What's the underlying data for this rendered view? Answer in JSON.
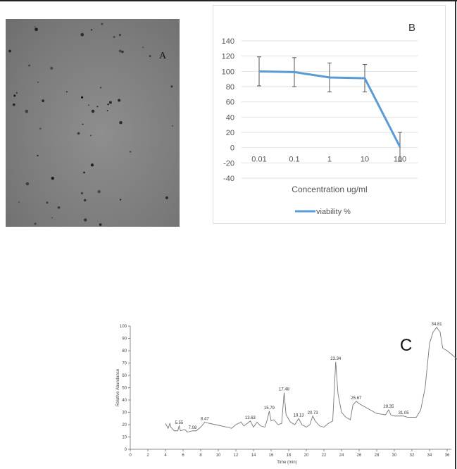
{
  "panel_a": {
    "label": "A"
  },
  "chart_data": [
    {
      "type": "line",
      "panel_label": "B",
      "title": "",
      "xlabel": "Concentration ug/ml",
      "ylabel": "",
      "categories": [
        "0.01",
        "0.1",
        "1",
        "10",
        "100"
      ],
      "series": [
        {
          "name": "viability %",
          "values": [
            100,
            99,
            92,
            91,
            1
          ],
          "error": [
            19,
            19,
            19,
            18,
            19
          ]
        }
      ],
      "ylim": [
        -40,
        140
      ],
      "yticks": [
        140,
        120,
        100,
        80,
        60,
        40,
        20,
        0,
        -20,
        -40
      ],
      "grid": true,
      "legend": "bottom",
      "color": "#5b9bd5"
    },
    {
      "type": "line",
      "panel_label": "C",
      "xlabel": "Time (min)",
      "ylabel": "Relative Abundance",
      "xlim": [
        0,
        37.5
      ],
      "ylim": [
        0,
        100
      ],
      "xticks": [
        0,
        2,
        4,
        6,
        8,
        10,
        12,
        14,
        16,
        18,
        20,
        22,
        24,
        26,
        28,
        30,
        32,
        34,
        36
      ],
      "yticks": [
        0,
        10,
        20,
        30,
        40,
        50,
        60,
        70,
        80,
        90,
        100
      ],
      "peaks": [
        {
          "t": "5.55",
          "y": 19
        },
        {
          "t": "7.08",
          "y": 15
        },
        {
          "t": "8.47",
          "y": 22
        },
        {
          "t": "13.63",
          "y": 23
        },
        {
          "t": "15.79",
          "y": 31
        },
        {
          "t": "17.48",
          "y": 46
        },
        {
          "t": "19.13",
          "y": 25
        },
        {
          "t": "20.73",
          "y": 27
        },
        {
          "t": "23.34",
          "y": 71
        },
        {
          "t": "25.67",
          "y": 39
        },
        {
          "t": "29.35",
          "y": 32
        },
        {
          "t": "31.05",
          "y": 27
        },
        {
          "t": "34.81",
          "y": 99
        }
      ],
      "trace": [
        [
          4.0,
          21
        ],
        [
          4.3,
          17
        ],
        [
          4.5,
          21
        ],
        [
          4.6,
          18
        ],
        [
          5.0,
          15
        ],
        [
          5.4,
          15
        ],
        [
          5.55,
          19
        ],
        [
          5.7,
          15
        ],
        [
          6.2,
          16
        ],
        [
          6.5,
          14
        ],
        [
          7.08,
          15
        ],
        [
          7.5,
          15
        ],
        [
          8.0,
          18
        ],
        [
          8.47,
          22
        ],
        [
          9,
          21
        ],
        [
          10,
          19.5
        ],
        [
          11,
          18
        ],
        [
          11.5,
          17
        ],
        [
          12,
          20
        ],
        [
          12.6,
          22
        ],
        [
          12.9,
          19
        ],
        [
          13.3,
          21
        ],
        [
          13.63,
          23
        ],
        [
          14,
          18
        ],
        [
          14.4,
          22
        ],
        [
          14.8,
          19
        ],
        [
          15.3,
          18
        ],
        [
          15.6,
          25
        ],
        [
          15.79,
          31
        ],
        [
          16,
          23
        ],
        [
          16.3,
          24
        ],
        [
          16.8,
          20
        ],
        [
          17.2,
          21
        ],
        [
          17.48,
          46
        ],
        [
          17.7,
          28
        ],
        [
          18.2,
          22
        ],
        [
          18.7,
          20
        ],
        [
          19.13,
          25
        ],
        [
          19.5,
          20
        ],
        [
          20,
          18
        ],
        [
          20.4,
          20
        ],
        [
          20.73,
          27
        ],
        [
          21,
          23
        ],
        [
          21.5,
          19
        ],
        [
          22,
          18
        ],
        [
          22.5,
          21
        ],
        [
          23,
          23
        ],
        [
          23.34,
          71
        ],
        [
          23.6,
          45
        ],
        [
          24,
          30
        ],
        [
          24.5,
          26
        ],
        [
          25,
          24
        ],
        [
          25.3,
          36
        ],
        [
          25.67,
          39
        ],
        [
          26,
          37
        ],
        [
          27,
          33
        ],
        [
          28,
          29
        ],
        [
          29,
          28
        ],
        [
          29.35,
          32
        ],
        [
          29.6,
          28
        ],
        [
          30,
          27
        ],
        [
          31.05,
          27
        ],
        [
          31.5,
          26
        ],
        [
          32.5,
          26
        ],
        [
          33,
          32
        ],
        [
          33.5,
          50
        ],
        [
          34,
          86
        ],
        [
          34.4,
          95
        ],
        [
          34.81,
          99
        ],
        [
          35.2,
          95
        ],
        [
          35.5,
          82
        ],
        [
          36,
          80
        ],
        [
          36.5,
          77
        ],
        [
          37,
          74
        ],
        [
          37.5,
          70
        ]
      ]
    }
  ]
}
